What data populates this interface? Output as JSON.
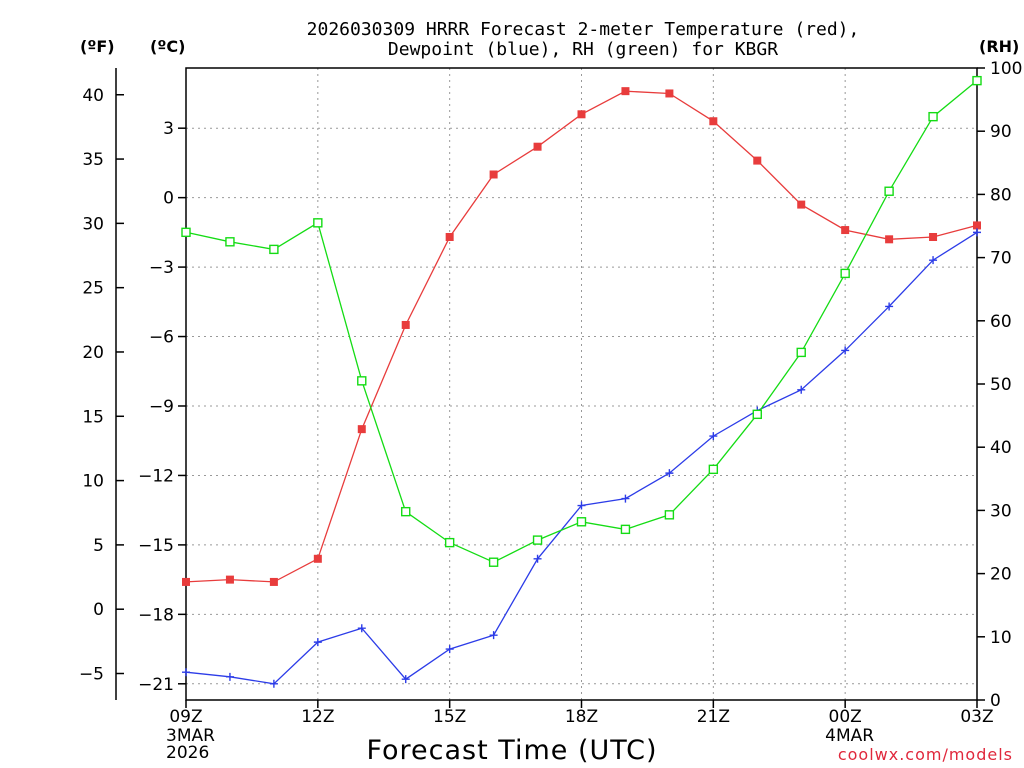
{
  "chart_data": {
    "type": "line",
    "title_lines": [
      "2026030309 HRRR Forecast 2-meter Temperature (red),",
      "Dewpoint (blue), RH (green) for KBGR"
    ],
    "xlabel": "Forecast Time (UTC)",
    "credit": "coolwx.com/models",
    "unit_labels": {
      "fahrenheit": "(ºF)",
      "celsius": "(ºC)",
      "rh": "(RH)"
    },
    "x_hours": [
      0,
      1,
      2,
      3,
      4,
      5,
      6,
      7,
      8,
      9,
      10,
      11,
      12,
      13,
      14,
      15,
      16,
      17,
      18
    ],
    "x_ticks": [
      {
        "hour": 0,
        "label": "09Z",
        "sub": [
          "3MAR",
          "2026"
        ]
      },
      {
        "hour": 3,
        "label": "12Z",
        "sub": []
      },
      {
        "hour": 6,
        "label": "15Z",
        "sub": []
      },
      {
        "hour": 9,
        "label": "18Z",
        "sub": []
      },
      {
        "hour": 12,
        "label": "21Z",
        "sub": []
      },
      {
        "hour": 15,
        "label": "00Z",
        "sub": [
          "4MAR"
        ]
      },
      {
        "hour": 18,
        "label": "03Z",
        "sub": []
      }
    ],
    "celsius_axis": {
      "range": [
        -21.7,
        5.6
      ],
      "ticks": [
        3,
        0,
        -3,
        -6,
        -9,
        -12,
        -15,
        -18,
        -21
      ],
      "tick_labels": [
        "3",
        "0",
        "−3",
        "−6",
        "−9",
        "−12",
        "−15",
        "−18",
        "−21"
      ]
    },
    "fahrenheit_axis": {
      "ticks": [
        40,
        35,
        30,
        25,
        20,
        15,
        10,
        5,
        0,
        -5
      ],
      "tick_labels": [
        "40",
        "35",
        "30",
        "25",
        "20",
        "15",
        "10",
        "5",
        "0",
        "−5"
      ]
    },
    "rh_axis": {
      "range": [
        0,
        100
      ],
      "ticks": [
        0,
        10,
        20,
        30,
        40,
        50,
        60,
        70,
        80,
        90,
        100
      ],
      "tick_labels": [
        "0",
        "10",
        "20",
        "30",
        "40",
        "50",
        "60",
        "70",
        "80",
        "90",
        "100"
      ]
    },
    "series": [
      {
        "name": "2-meter Temperature",
        "units": "C",
        "color": "#e83c3c",
        "marker": "filled-square",
        "values": [
          -16.6,
          -16.5,
          -16.6,
          -15.6,
          -10.0,
          -5.5,
          -1.7,
          1.0,
          2.2,
          3.6,
          4.6,
          4.5,
          3.3,
          1.6,
          -0.3,
          -1.4,
          -1.8,
          -1.7,
          -1.2
        ]
      },
      {
        "name": "Dewpoint",
        "units": "C",
        "color": "#2c3ce8",
        "marker": "plus",
        "values": [
          -20.5,
          -20.7,
          -21.0,
          -19.2,
          -18.6,
          -20.8,
          -19.5,
          -18.9,
          -15.6,
          -13.3,
          -13.0,
          -11.9,
          -10.3,
          -9.2,
          -8.3,
          -6.6,
          -4.7,
          -2.7,
          -1.5
        ]
      },
      {
        "name": "RH",
        "units": "%",
        "color": "#14dc14",
        "marker": "open-square",
        "values": [
          74.0,
          72.5,
          71.3,
          75.5,
          50.5,
          29.8,
          24.9,
          21.8,
          25.3,
          28.2,
          27.0,
          29.3,
          36.5,
          45.2,
          55.0,
          67.5,
          80.5,
          92.3,
          98.0
        ]
      }
    ]
  }
}
